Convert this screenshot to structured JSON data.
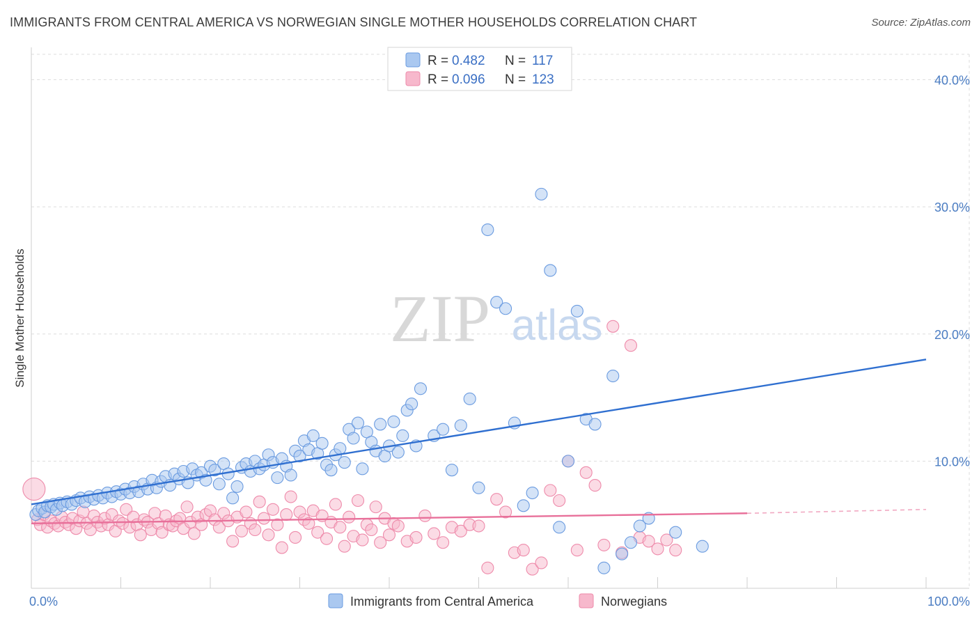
{
  "header": {
    "title": "IMMIGRANTS FROM CENTRAL AMERICA VS NORWEGIAN SINGLE MOTHER HOUSEHOLDS CORRELATION CHART",
    "source": "Source: ZipAtlas.com"
  },
  "watermark": {
    "zip": "ZIP",
    "atlas": "atlas"
  },
  "colors": {
    "blue_fill": "#aac8f0",
    "blue_stroke": "#6a9be0",
    "blue_line": "#2f6fd0",
    "pink_fill": "#f7b8cc",
    "pink_stroke": "#ee8aaa",
    "pink_line": "#e8709a",
    "grid": "#dddddd",
    "axis_text": "#4a7cc2"
  },
  "legend": {
    "rows": [
      {
        "r_label": "R =",
        "r_value": "0.482",
        "n_label": "N =",
        "n_value": "117",
        "color": "blue"
      },
      {
        "r_label": "R =",
        "r_value": "0.096",
        "n_label": "N =",
        "n_value": "123",
        "color": "pink"
      }
    ]
  },
  "chart_data": {
    "type": "scatter",
    "title": "IMMIGRANTS FROM CENTRAL AMERICA VS NORWEGIAN SINGLE MOTHER HOUSEHOLDS CORRELATION CHART",
    "xlabel": "",
    "ylabel": "Single Mother Households",
    "xlim": [
      0,
      100
    ],
    "ylim": [
      0,
      42
    ],
    "x_tick_labels": [
      {
        "value": 0,
        "label": "0.0%"
      },
      {
        "value": 100,
        "label": "100.0%"
      }
    ],
    "y_tick_labels": [
      {
        "value": 10,
        "label": "10.0%"
      },
      {
        "value": 20,
        "label": "20.0%"
      },
      {
        "value": 30,
        "label": "30.0%"
      },
      {
        "value": 40,
        "label": "40.0%"
      }
    ],
    "grid": true,
    "legend_position": "top-center",
    "series": [
      {
        "name": "Immigrants from Central America",
        "color": "blue",
        "trend": {
          "x": [
            0,
            100
          ],
          "y": [
            6.6,
            18.0
          ],
          "dashed_from": null
        },
        "points": [
          [
            0.5,
            5.8
          ],
          [
            0.8,
            6.1
          ],
          [
            1.2,
            6.3
          ],
          [
            1.5,
            6.0
          ],
          [
            1.8,
            6.5
          ],
          [
            2.2,
            6.4
          ],
          [
            2.5,
            6.6
          ],
          [
            2.8,
            6.2
          ],
          [
            3.2,
            6.7
          ],
          [
            3.5,
            6.5
          ],
          [
            4.0,
            6.8
          ],
          [
            4.5,
            6.6
          ],
          [
            5.0,
            6.9
          ],
          [
            5.5,
            7.1
          ],
          [
            6.0,
            6.8
          ],
          [
            6.5,
            7.2
          ],
          [
            7.0,
            7.0
          ],
          [
            7.5,
            7.3
          ],
          [
            8.0,
            7.1
          ],
          [
            8.5,
            7.5
          ],
          [
            9.0,
            7.2
          ],
          [
            9.5,
            7.6
          ],
          [
            10.0,
            7.4
          ],
          [
            10.5,
            7.8
          ],
          [
            11.0,
            7.5
          ],
          [
            11.5,
            8.0
          ],
          [
            12.0,
            7.6
          ],
          [
            12.5,
            8.2
          ],
          [
            13.0,
            7.8
          ],
          [
            13.5,
            8.5
          ],
          [
            14.0,
            7.9
          ],
          [
            14.5,
            8.4
          ],
          [
            15.0,
            8.8
          ],
          [
            15.5,
            8.1
          ],
          [
            16.0,
            9.0
          ],
          [
            16.5,
            8.6
          ],
          [
            17.0,
            9.2
          ],
          [
            17.5,
            8.3
          ],
          [
            18.0,
            9.4
          ],
          [
            18.5,
            8.9
          ],
          [
            19.0,
            9.1
          ],
          [
            19.5,
            8.5
          ],
          [
            20.0,
            9.6
          ],
          [
            20.5,
            9.3
          ],
          [
            21.0,
            8.2
          ],
          [
            21.5,
            9.8
          ],
          [
            22.0,
            9.0
          ],
          [
            22.5,
            7.1
          ],
          [
            23.0,
            8.0
          ],
          [
            23.5,
            9.5
          ],
          [
            24.0,
            9.8
          ],
          [
            24.5,
            9.2
          ],
          [
            25.0,
            10.0
          ],
          [
            25.5,
            9.4
          ],
          [
            26.0,
            9.7
          ],
          [
            26.5,
            10.5
          ],
          [
            27.0,
            9.9
          ],
          [
            27.5,
            8.7
          ],
          [
            28.0,
            10.2
          ],
          [
            28.5,
            9.6
          ],
          [
            29.0,
            8.9
          ],
          [
            29.5,
            10.8
          ],
          [
            30.0,
            10.4
          ],
          [
            30.5,
            11.6
          ],
          [
            31.0,
            10.9
          ],
          [
            31.5,
            12.0
          ],
          [
            32.0,
            10.6
          ],
          [
            32.5,
            11.4
          ],
          [
            33.0,
            9.7
          ],
          [
            33.5,
            9.3
          ],
          [
            34.0,
            10.5
          ],
          [
            34.5,
            11.0
          ],
          [
            35.0,
            9.9
          ],
          [
            35.5,
            12.5
          ],
          [
            36.0,
            11.8
          ],
          [
            36.5,
            13.0
          ],
          [
            37.0,
            9.4
          ],
          [
            37.5,
            12.3
          ],
          [
            38.0,
            11.5
          ],
          [
            38.5,
            10.8
          ],
          [
            39.0,
            12.9
          ],
          [
            39.5,
            10.4
          ],
          [
            40.0,
            11.2
          ],
          [
            40.5,
            13.1
          ],
          [
            41.0,
            10.7
          ],
          [
            41.5,
            12.0
          ],
          [
            42.0,
            14.0
          ],
          [
            42.5,
            14.5
          ],
          [
            43.0,
            11.2
          ],
          [
            43.5,
            15.7
          ],
          [
            45.0,
            12.0
          ],
          [
            46.0,
            12.5
          ],
          [
            47.0,
            9.3
          ],
          [
            48.0,
            12.8
          ],
          [
            49.0,
            14.9
          ],
          [
            50.0,
            7.9
          ],
          [
            51.0,
            28.2
          ],
          [
            52.0,
            22.5
          ],
          [
            53.0,
            22.0
          ],
          [
            54.0,
            13.0
          ],
          [
            55.0,
            6.5
          ],
          [
            56.0,
            7.5
          ],
          [
            57.0,
            31.0
          ],
          [
            58.0,
            25.0
          ],
          [
            59.0,
            4.8
          ],
          [
            60.0,
            10.0
          ],
          [
            61.0,
            21.8
          ],
          [
            62.0,
            13.3
          ],
          [
            63.0,
            12.9
          ],
          [
            64.0,
            1.6
          ],
          [
            65.0,
            16.7
          ],
          [
            66.0,
            2.7
          ],
          [
            67.0,
            3.6
          ],
          [
            68.0,
            4.9
          ],
          [
            69.0,
            5.5
          ],
          [
            72.0,
            4.4
          ],
          [
            75.0,
            3.3
          ]
        ]
      },
      {
        "name": "Norwegians",
        "color": "pink",
        "trend": {
          "x": [
            0,
            80
          ],
          "y": [
            5.1,
            5.9
          ],
          "dashed_from": 80,
          "dashed_to": [
            100,
            6.2
          ]
        },
        "points": [
          [
            0.3,
            7.8
          ],
          [
            0.7,
            5.4
          ],
          [
            1.0,
            5.0
          ],
          [
            1.4,
            5.8
          ],
          [
            1.8,
            4.8
          ],
          [
            2.2,
            5.3
          ],
          [
            2.6,
            5.1
          ],
          [
            3.0,
            4.9
          ],
          [
            3.4,
            5.6
          ],
          [
            3.8,
            5.2
          ],
          [
            4.2,
            5.0
          ],
          [
            4.6,
            5.5
          ],
          [
            5.0,
            4.7
          ],
          [
            5.4,
            5.3
          ],
          [
            5.8,
            6.0
          ],
          [
            6.2,
            5.1
          ],
          [
            6.6,
            4.6
          ],
          [
            7.0,
            5.7
          ],
          [
            7.4,
            5.2
          ],
          [
            7.8,
            4.9
          ],
          [
            8.2,
            5.5
          ],
          [
            8.6,
            5.0
          ],
          [
            9.0,
            5.8
          ],
          [
            9.4,
            4.5
          ],
          [
            9.8,
            5.3
          ],
          [
            10.2,
            5.1
          ],
          [
            10.6,
            6.2
          ],
          [
            11.0,
            4.8
          ],
          [
            11.4,
            5.6
          ],
          [
            11.8,
            5.0
          ],
          [
            12.2,
            4.2
          ],
          [
            12.6,
            5.4
          ],
          [
            13.0,
            5.2
          ],
          [
            13.4,
            4.6
          ],
          [
            13.8,
            5.9
          ],
          [
            14.2,
            5.1
          ],
          [
            14.6,
            4.4
          ],
          [
            15.0,
            5.7
          ],
          [
            15.4,
            5.0
          ],
          [
            15.8,
            4.9
          ],
          [
            16.2,
            5.3
          ],
          [
            16.6,
            5.5
          ],
          [
            17.0,
            4.7
          ],
          [
            17.4,
            6.4
          ],
          [
            17.8,
            5.2
          ],
          [
            18.2,
            4.3
          ],
          [
            18.6,
            5.6
          ],
          [
            19.0,
            5.0
          ],
          [
            19.5,
            5.8
          ],
          [
            20.0,
            6.1
          ],
          [
            20.5,
            5.4
          ],
          [
            21.0,
            4.8
          ],
          [
            21.5,
            5.9
          ],
          [
            22.0,
            5.3
          ],
          [
            22.5,
            3.7
          ],
          [
            23.0,
            5.6
          ],
          [
            23.5,
            4.5
          ],
          [
            24.0,
            6.0
          ],
          [
            24.5,
            5.1
          ],
          [
            25.0,
            4.6
          ],
          [
            25.5,
            6.8
          ],
          [
            26.0,
            5.5
          ],
          [
            26.5,
            4.2
          ],
          [
            27.0,
            6.2
          ],
          [
            27.5,
            5.0
          ],
          [
            28.0,
            3.2
          ],
          [
            28.5,
            5.8
          ],
          [
            29.0,
            7.2
          ],
          [
            29.5,
            4.0
          ],
          [
            30.0,
            6.0
          ],
          [
            30.5,
            5.4
          ],
          [
            31.0,
            5.1
          ],
          [
            31.5,
            6.1
          ],
          [
            32.0,
            4.4
          ],
          [
            32.5,
            5.7
          ],
          [
            33.0,
            3.9
          ],
          [
            33.5,
            5.2
          ],
          [
            34.0,
            6.6
          ],
          [
            34.5,
            4.8
          ],
          [
            35.0,
            3.3
          ],
          [
            35.5,
            5.6
          ],
          [
            36.0,
            4.1
          ],
          [
            36.5,
            6.9
          ],
          [
            37.0,
            3.8
          ],
          [
            37.5,
            5.0
          ],
          [
            38.0,
            4.6
          ],
          [
            38.5,
            6.4
          ],
          [
            39.0,
            3.6
          ],
          [
            39.5,
            5.5
          ],
          [
            40.0,
            4.2
          ],
          [
            40.5,
            5.1
          ],
          [
            41.0,
            4.9
          ],
          [
            42.0,
            3.7
          ],
          [
            43.0,
            4.0
          ],
          [
            44.0,
            5.7
          ],
          [
            45.0,
            4.3
          ],
          [
            46.0,
            3.6
          ],
          [
            47.0,
            4.8
          ],
          [
            48.0,
            4.5
          ],
          [
            49.0,
            5.0
          ],
          [
            50.0,
            4.9
          ],
          [
            51.0,
            1.6
          ],
          [
            52.0,
            7.0
          ],
          [
            53.0,
            6.0
          ],
          [
            54.0,
            2.8
          ],
          [
            55.0,
            3.0
          ],
          [
            56.0,
            1.5
          ],
          [
            57.0,
            2.0
          ],
          [
            58.0,
            7.7
          ],
          [
            59.0,
            6.9
          ],
          [
            60.0,
            10.0
          ],
          [
            61.0,
            3.0
          ],
          [
            62.0,
            9.1
          ],
          [
            63.0,
            8.1
          ],
          [
            64.0,
            3.4
          ],
          [
            65.0,
            20.6
          ],
          [
            66.0,
            2.8
          ],
          [
            67.0,
            19.1
          ],
          [
            68.0,
            4.0
          ],
          [
            69.0,
            3.7
          ],
          [
            70.0,
            3.1
          ],
          [
            71.0,
            3.8
          ],
          [
            72.0,
            3.0
          ]
        ]
      }
    ]
  },
  "bottom_legend": [
    {
      "label": "Immigrants from Central America",
      "color": "blue"
    },
    {
      "label": "Norwegians",
      "color": "pink"
    }
  ]
}
